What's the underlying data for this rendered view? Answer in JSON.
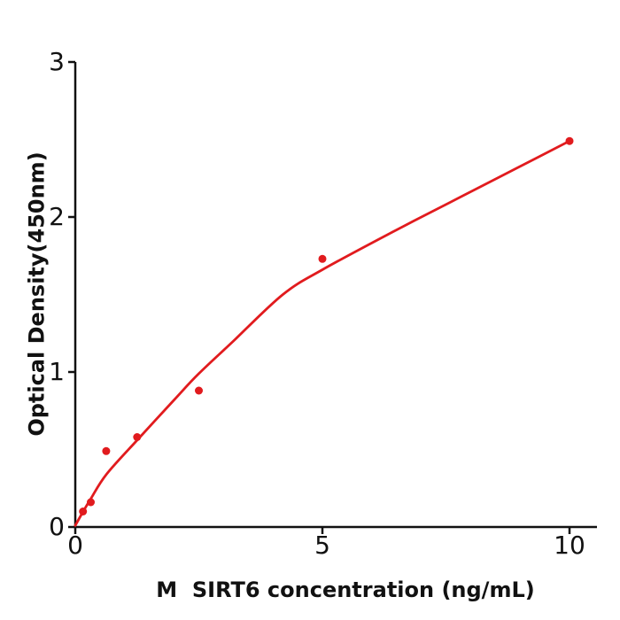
{
  "figure": {
    "background": "#ffffff"
  },
  "chart_data": {
    "type": "scatter",
    "title": "",
    "xlabel": "M  SIRT6 concentration (ng/mL)",
    "ylabel": "Optical Density(450nm)",
    "xlim": [
      0,
      10.55
    ],
    "ylim": [
      0,
      3
    ],
    "x_ticks": [
      0,
      5,
      10
    ],
    "y_ticks": [
      0,
      1,
      2,
      3
    ],
    "grid": false,
    "axis_color": "#111111",
    "text_color": "#111111",
    "accent_color": "#e11b1e",
    "series": [
      {
        "name": "standard-points",
        "type": "scatter",
        "color": "#e11b1e",
        "x": [
          0.156,
          0.313,
          0.625,
          1.25,
          2.5,
          5,
          10
        ],
        "y": [
          0.1,
          0.16,
          0.49,
          0.58,
          0.88,
          1.73,
          2.49
        ]
      },
      {
        "name": "fit-curve",
        "type": "line",
        "color": "#e11b1e",
        "x": [
          0,
          0.16,
          0.31,
          0.63,
          1.25,
          2.0,
          2.5,
          3.2,
          4.2,
          5.0,
          6.4,
          7.8,
          8.9,
          10.0
        ],
        "y": [
          0.01,
          0.1,
          0.18,
          0.34,
          0.56,
          0.82,
          0.99,
          1.2,
          1.5,
          1.66,
          1.9,
          2.13,
          2.31,
          2.49
        ]
      }
    ]
  }
}
